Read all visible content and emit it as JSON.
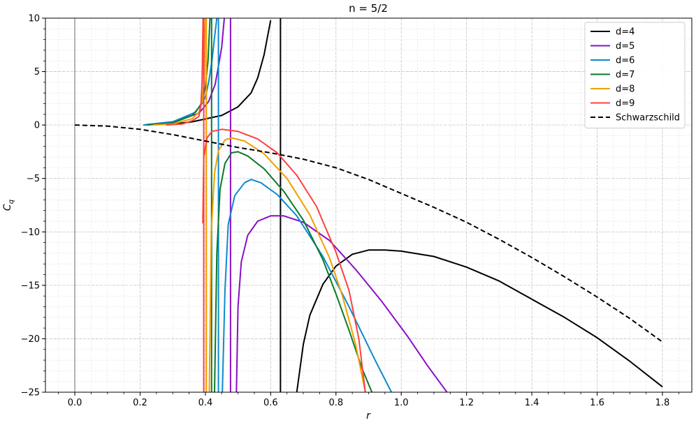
{
  "chart_data": {
    "type": "line",
    "title": "n = 5/2",
    "xlabel": "r",
    "ylabel": "C_q",
    "xlim": [
      -0.09,
      1.89
    ],
    "ylim": [
      -25,
      10
    ],
    "xticks": [
      0.0,
      0.2,
      0.4,
      0.6,
      0.8,
      1.0,
      1.2,
      1.4,
      1.6,
      1.8
    ],
    "xtick_labels": [
      "0.0",
      "0.2",
      "0.4",
      "0.6",
      "0.8",
      "1.0",
      "1.2",
      "1.4",
      "1.6",
      "1.8"
    ],
    "yticks": [
      10,
      5,
      0,
      -5,
      -10,
      -15,
      -20,
      -25
    ],
    "ytick_labels": [
      "10",
      "5",
      "0",
      "−5",
      "−10",
      "−15",
      "−20",
      "−25"
    ],
    "grid": true,
    "minor_grid": true,
    "legend_position": "top-right",
    "zero_line_x": 0.0,
    "series": [
      {
        "name": "d=4",
        "color": "#000000",
        "dash": "solid",
        "asymptote": 0.63,
        "segments": [
          [
            [
              0.28,
              0
            ],
            [
              0.36,
              0.3
            ],
            [
              0.45,
              0.9
            ],
            [
              0.5,
              1.7
            ],
            [
              0.54,
              3.0
            ],
            [
              0.56,
              4.4
            ],
            [
              0.58,
              6.6
            ],
            [
              0.6,
              9.8
            ]
          ],
          [
            [
              0.68,
              -25
            ],
            [
              0.7,
              -20.5
            ],
            [
              0.72,
              -17.8
            ],
            [
              0.76,
              -14.9
            ],
            [
              0.8,
              -13.2
            ],
            [
              0.85,
              -12.1
            ],
            [
              0.9,
              -11.7
            ],
            [
              0.95,
              -11.7
            ],
            [
              1.0,
              -11.8
            ],
            [
              1.1,
              -12.3
            ],
            [
              1.2,
              -13.3
            ],
            [
              1.3,
              -14.6
            ],
            [
              1.4,
              -16.3
            ],
            [
              1.5,
              -18.0
            ],
            [
              1.6,
              -19.9
            ],
            [
              1.7,
              -22.1
            ],
            [
              1.8,
              -24.5
            ]
          ]
        ]
      },
      {
        "name": "d=5",
        "color": "#8a0fc7",
        "dash": "solid",
        "asymptote": 0.477,
        "segments": [
          [
            [
              0.21,
              0
            ],
            [
              0.3,
              0.3
            ],
            [
              0.38,
              1.1
            ],
            [
              0.41,
              2.2
            ],
            [
              0.43,
              3.8
            ],
            [
              0.44,
              5.5
            ],
            [
              0.45,
              7.3
            ],
            [
              0.458,
              10
            ]
          ],
          [
            [
              0.495,
              -25
            ],
            [
              0.5,
              -17.0
            ],
            [
              0.51,
              -12.8
            ],
            [
              0.53,
              -10.3
            ],
            [
              0.56,
              -9.0
            ],
            [
              0.6,
              -8.5
            ],
            [
              0.64,
              -8.5
            ],
            [
              0.7,
              -9.1
            ],
            [
              0.78,
              -10.8
            ],
            [
              0.86,
              -13.5
            ],
            [
              0.94,
              -16.5
            ],
            [
              1.02,
              -19.8
            ],
            [
              1.08,
              -22.5
            ],
            [
              1.14,
              -25
            ]
          ]
        ]
      },
      {
        "name": "d=6",
        "color": "#0b8ad1",
        "dash": "solid",
        "asymptote": 0.44,
        "segments": [
          [
            [
              0.21,
              0
            ],
            [
              0.3,
              0.3
            ],
            [
              0.37,
              1.2
            ],
            [
              0.4,
              2.6
            ],
            [
              0.41,
              4.0
            ],
            [
              0.42,
              6.0
            ],
            [
              0.428,
              8.2
            ],
            [
              0.435,
              10
            ]
          ],
          [
            [
              0.452,
              -25
            ],
            [
              0.46,
              -15.5
            ],
            [
              0.47,
              -9.3
            ],
            [
              0.49,
              -6.6
            ],
            [
              0.52,
              -5.4
            ],
            [
              0.54,
              -5.1
            ],
            [
              0.57,
              -5.4
            ],
            [
              0.62,
              -6.5
            ],
            [
              0.68,
              -8.5
            ],
            [
              0.76,
              -12.3
            ],
            [
              0.84,
              -17.0
            ],
            [
              0.92,
              -22.0
            ],
            [
              0.97,
              -25
            ]
          ]
        ]
      },
      {
        "name": "d=7",
        "color": "#0a7a2a",
        "dash": "solid",
        "asymptote": 0.419,
        "segments": [
          [
            [
              0.22,
              0
            ],
            [
              0.3,
              0.2
            ],
            [
              0.36,
              0.9
            ],
            [
              0.39,
              2.0
            ],
            [
              0.4,
              3.6
            ],
            [
              0.408,
              6.0
            ],
            [
              0.414,
              10
            ]
          ],
          [
            [
              0.428,
              -25
            ],
            [
              0.435,
              -12.0
            ],
            [
              0.445,
              -6.0
            ],
            [
              0.46,
              -3.6
            ],
            [
              0.48,
              -2.6
            ],
            [
              0.5,
              -2.5
            ],
            [
              0.53,
              -2.9
            ],
            [
              0.58,
              -4.1
            ],
            [
              0.64,
              -6.2
            ],
            [
              0.7,
              -8.9
            ],
            [
              0.76,
              -12.6
            ],
            [
              0.8,
              -15.8
            ],
            [
              0.84,
              -19.2
            ],
            [
              0.88,
              -22.8
            ],
            [
              0.91,
              -25
            ]
          ]
        ]
      },
      {
        "name": "d=8",
        "color": "#f0a000",
        "dash": "solid",
        "asymptote": 0.403,
        "segments": [
          [
            [
              0.24,
              0
            ],
            [
              0.3,
              0.1
            ],
            [
              0.36,
              0.6
            ],
            [
              0.38,
              1.2
            ],
            [
              0.39,
              2.2
            ],
            [
              0.396,
              4.0
            ],
            [
              0.4,
              10
            ]
          ],
          [
            [
              0.412,
              -25
            ],
            [
              0.418,
              -10.0
            ],
            [
              0.428,
              -4.5
            ],
            [
              0.44,
              -2.4
            ],
            [
              0.46,
              -1.4
            ],
            [
              0.48,
              -1.2
            ],
            [
              0.52,
              -1.5
            ],
            [
              0.58,
              -2.7
            ],
            [
              0.65,
              -5.0
            ],
            [
              0.72,
              -8.4
            ],
            [
              0.78,
              -12.4
            ],
            [
              0.82,
              -16.0
            ],
            [
              0.86,
              -20.5
            ],
            [
              0.89,
              -25
            ]
          ]
        ]
      },
      {
        "name": "d=9",
        "color": "#ff4040",
        "dash": "solid",
        "asymptote": 0.395,
        "segments": [
          [
            [
              0.28,
              0
            ],
            [
              0.33,
              0.1
            ],
            [
              0.36,
              0.4
            ],
            [
              0.38,
              0.8
            ],
            [
              0.386,
              1.8
            ],
            [
              0.39,
              4.0
            ],
            [
              0.393,
              10
            ]
          ],
          [
            [
              0.392,
              -9.2
            ],
            [
              0.395,
              -3.0
            ],
            [
              0.405,
              -1.2
            ],
            [
              0.42,
              -0.6
            ],
            [
              0.45,
              -0.4
            ],
            [
              0.5,
              -0.6
            ],
            [
              0.56,
              -1.3
            ],
            [
              0.62,
              -2.6
            ],
            [
              0.68,
              -4.7
            ],
            [
              0.74,
              -7.6
            ],
            [
              0.8,
              -11.9
            ],
            [
              0.84,
              -15.5
            ],
            [
              0.87,
              -20.0
            ],
            [
              0.89,
              -25
            ]
          ]
        ]
      },
      {
        "name": "Schwarzschild",
        "color": "#000000",
        "dash": "dashed",
        "asymptote": null,
        "segments": [
          [
            [
              0.0,
              0
            ],
            [
              0.1,
              -0.1
            ],
            [
              0.2,
              -0.4
            ],
            [
              0.3,
              -0.9
            ],
            [
              0.4,
              -1.5
            ],
            [
              0.5,
              -2.1
            ],
            [
              0.6,
              -2.6
            ],
            [
              0.7,
              -3.2
            ],
            [
              0.8,
              -4.0
            ],
            [
              0.9,
              -5.1
            ],
            [
              1.0,
              -6.4
            ],
            [
              1.1,
              -7.7
            ],
            [
              1.2,
              -9.1
            ],
            [
              1.3,
              -10.7
            ],
            [
              1.4,
              -12.4
            ],
            [
              1.5,
              -14.2
            ],
            [
              1.6,
              -16.1
            ],
            [
              1.7,
              -18.1
            ],
            [
              1.8,
              -20.3
            ]
          ]
        ]
      }
    ]
  }
}
